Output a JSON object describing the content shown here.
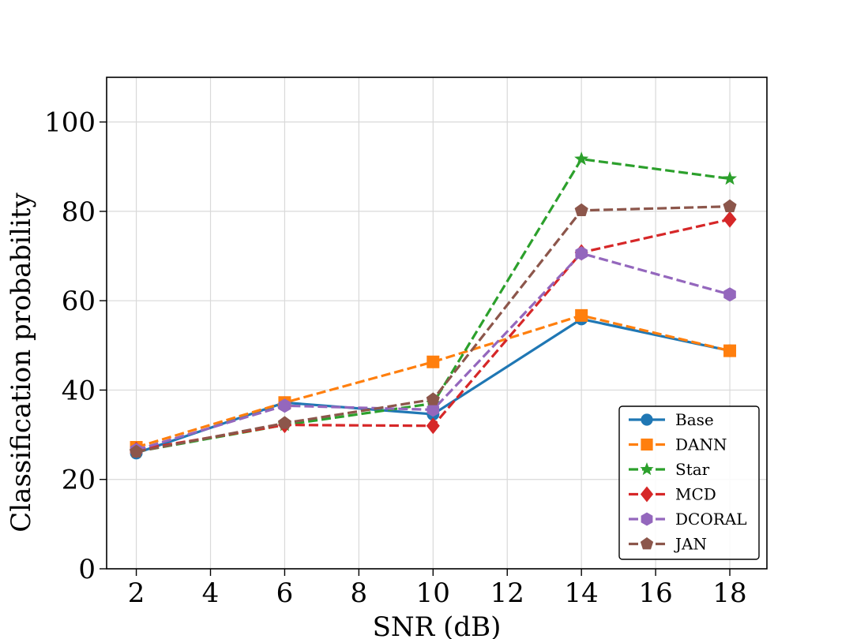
{
  "chart_data": {
    "type": "line",
    "title": "",
    "xlabel": "SNR (dB)",
    "ylabel": "Classification probability",
    "xlim": [
      1.2,
      19.0
    ],
    "ylim": [
      0,
      110
    ],
    "xticks": [
      2,
      4,
      6,
      8,
      10,
      12,
      14,
      16,
      18
    ],
    "yticks": [
      0,
      20,
      40,
      60,
      80,
      100
    ],
    "grid": true,
    "legend_position": "lower-right",
    "x": [
      2,
      6,
      10,
      14,
      18
    ],
    "series": [
      {
        "name": "Base",
        "values": [
          25.9,
          37.2,
          34.6,
          55.9,
          48.8
        ],
        "color": "#1f77b4",
        "marker": "circle",
        "dashed": false
      },
      {
        "name": "DANN",
        "values": [
          27.2,
          37.2,
          46.3,
          56.7,
          48.8
        ],
        "color": "#ff7f0e",
        "marker": "square",
        "dashed": true
      },
      {
        "name": "Star",
        "values": [
          26.2,
          32.2,
          37.0,
          91.7,
          87.3
        ],
        "color": "#2ca02c",
        "marker": "star",
        "dashed": true
      },
      {
        "name": "MCD",
        "values": [
          26.6,
          32.2,
          32.0,
          70.8,
          78.2
        ],
        "color": "#d62728",
        "marker": "diamond",
        "dashed": true
      },
      {
        "name": "DCORAL",
        "values": [
          26.6,
          36.5,
          35.6,
          70.6,
          61.4
        ],
        "color": "#9467bd",
        "marker": "hexagon",
        "dashed": true
      },
      {
        "name": "JAN",
        "values": [
          26.2,
          32.6,
          37.9,
          80.2,
          81.1
        ],
        "color": "#8c564b",
        "marker": "pentagon",
        "dashed": true
      }
    ]
  }
}
